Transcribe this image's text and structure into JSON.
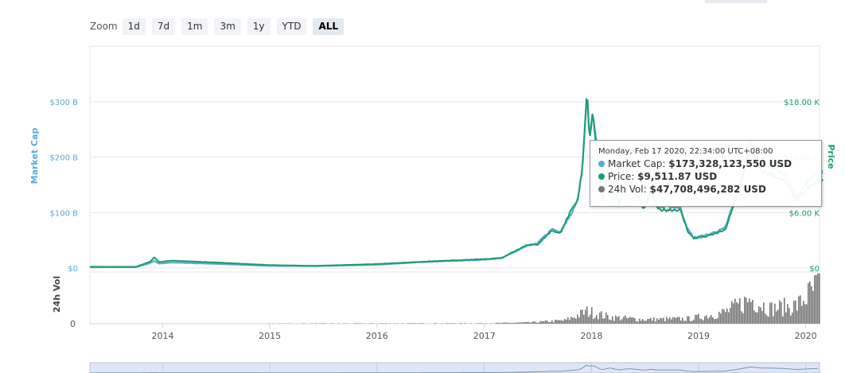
{
  "zoom": {
    "label": "Zoom",
    "buttons": [
      "1d",
      "7d",
      "1m",
      "3m",
      "1y",
      "YTD",
      "ALL"
    ],
    "active": "ALL"
  },
  "chart_data": {
    "type": "line",
    "x_ticks": [
      "2014",
      "2015",
      "2016",
      "2017",
      "2018",
      "2019",
      "2020"
    ],
    "left_axis": {
      "title": "Market Cap",
      "ticks": [
        "$0",
        "$100 B",
        "$200 B",
        "$300 B"
      ],
      "range": [
        0,
        300
      ],
      "color": "#5aa9d6"
    },
    "right_axis": {
      "title": "Price",
      "ticks": [
        "$0",
        "$6.00 K",
        "$12.00 K",
        "$18.00 K"
      ],
      "tick_values": [
        0,
        6000,
        12000,
        18000
      ],
      "color": "#1a9e6b"
    },
    "volume_axis": {
      "title": "24h Vol",
      "ticks": [
        "0"
      ]
    },
    "series": [
      {
        "name": "Market Cap",
        "color": "#5aa9d6",
        "points": [
          [
            "2013-04-28",
            1.5
          ],
          [
            "2013-10-01",
            1.6
          ],
          [
            "2013-11-20",
            9
          ],
          [
            "2013-12-04",
            13
          ],
          [
            "2013-12-20",
            8
          ],
          [
            "2014-02-01",
            10
          ],
          [
            "2014-06-01",
            8
          ],
          [
            "2014-12-31",
            4
          ],
          [
            "2015-06-01",
            3.5
          ],
          [
            "2015-12-31",
            6
          ],
          [
            "2016-06-15",
            11
          ],
          [
            "2016-12-31",
            15
          ],
          [
            "2017-03-01",
            18
          ],
          [
            "2017-05-25",
            40
          ],
          [
            "2017-06-30",
            45
          ],
          [
            "2017-08-20",
            70
          ],
          [
            "2017-09-15",
            65
          ],
          [
            "2017-10-20",
            95
          ],
          [
            "2017-11-15",
            120
          ],
          [
            "2017-12-01",
            180
          ],
          [
            "2017-12-17",
            325
          ],
          [
            "2017-12-25",
            240
          ],
          [
            "2018-01-06",
            280
          ],
          [
            "2018-02-06",
            120
          ],
          [
            "2018-03-05",
            190
          ],
          [
            "2018-04-05",
            115
          ],
          [
            "2018-05-05",
            165
          ],
          [
            "2018-06-30",
            110
          ],
          [
            "2018-07-25",
            140
          ],
          [
            "2018-08-15",
            110
          ],
          [
            "2018-10-30",
            110
          ],
          [
            "2018-11-25",
            70
          ],
          [
            "2018-12-15",
            55
          ],
          [
            "2019-02-01",
            60
          ],
          [
            "2019-04-01",
            72
          ],
          [
            "2019-05-15",
            140
          ],
          [
            "2019-06-26",
            230
          ],
          [
            "2019-08-01",
            190
          ],
          [
            "2019-09-20",
            180
          ],
          [
            "2019-10-26",
            165
          ],
          [
            "2019-12-01",
            130
          ],
          [
            "2020-01-15",
            160
          ],
          [
            "2020-02-17",
            173
          ]
        ]
      },
      {
        "name": "Price",
        "color": "#1a9e6b",
        "points": [
          [
            "2013-04-28",
            135
          ],
          [
            "2013-10-01",
            125
          ],
          [
            "2013-11-20",
            700
          ],
          [
            "2013-12-04",
            1150
          ],
          [
            "2013-12-20",
            650
          ],
          [
            "2014-02-01",
            800
          ],
          [
            "2014-06-01",
            640
          ],
          [
            "2014-12-31",
            320
          ],
          [
            "2015-06-01",
            230
          ],
          [
            "2015-12-31",
            430
          ],
          [
            "2016-06-15",
            700
          ],
          [
            "2016-12-31",
            960
          ],
          [
            "2017-03-01",
            1100
          ],
          [
            "2017-05-25",
            2500
          ],
          [
            "2017-06-30",
            2500
          ],
          [
            "2017-08-20",
            4100
          ],
          [
            "2017-09-15",
            3700
          ],
          [
            "2017-10-20",
            6000
          ],
          [
            "2017-11-15",
            7300
          ],
          [
            "2017-12-01",
            10800
          ],
          [
            "2017-12-17",
            19500
          ],
          [
            "2017-12-25",
            14000
          ],
          [
            "2018-01-06",
            17000
          ],
          [
            "2018-02-06",
            7000
          ],
          [
            "2018-03-05",
            11400
          ],
          [
            "2018-04-05",
            6800
          ],
          [
            "2018-05-05",
            9700
          ],
          [
            "2018-06-30",
            6300
          ],
          [
            "2018-07-25",
            8200
          ],
          [
            "2018-08-15",
            6300
          ],
          [
            "2018-10-30",
            6300
          ],
          [
            "2018-11-25",
            4000
          ],
          [
            "2018-12-15",
            3200
          ],
          [
            "2019-02-01",
            3450
          ],
          [
            "2019-04-01",
            4100
          ],
          [
            "2019-05-15",
            8000
          ],
          [
            "2019-06-26",
            12900
          ],
          [
            "2019-08-01",
            10500
          ],
          [
            "2019-09-20",
            10000
          ],
          [
            "2019-10-26",
            9200
          ],
          [
            "2019-12-01",
            7300
          ],
          [
            "2020-01-15",
            8800
          ],
          [
            "2020-02-17",
            9511.87
          ]
        ]
      },
      {
        "name": "24h Vol",
        "color": "#777777",
        "points": [
          [
            "2013-04-28",
            0.1
          ],
          [
            "2017-01-01",
            0.5
          ],
          [
            "2017-06-01",
            1.5
          ],
          [
            "2017-10-01",
            4
          ],
          [
            "2017-12-17",
            15
          ],
          [
            "2018-01-15",
            12
          ],
          [
            "2018-03-01",
            8
          ],
          [
            "2018-07-01",
            5
          ],
          [
            "2018-12-01",
            6
          ],
          [
            "2019-04-01",
            14
          ],
          [
            "2019-06-26",
            30
          ],
          [
            "2019-09-01",
            18
          ],
          [
            "2019-12-01",
            22
          ],
          [
            "2020-02-17",
            47.7
          ]
        ]
      }
    ],
    "tooltip": {
      "date": "Monday, Feb 17 2020, 22:34:00 UTC+08:00",
      "rows": [
        {
          "label": "Market Cap:",
          "value": "$173,328,123,550 USD",
          "color": "#5aa9d6"
        },
        {
          "label": "Price:",
          "value": "$9,511.87 USD",
          "color": "#1a9e6b"
        },
        {
          "label": "24h Vol:",
          "value": "$47,708,496,282 USD",
          "color": "#777777"
        }
      ]
    },
    "grid": true
  }
}
